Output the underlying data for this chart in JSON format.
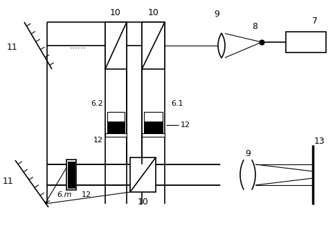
{
  "fig_width": 4.84,
  "fig_height": 3.46,
  "dpi": 100,
  "bg_color": "#ffffff",
  "lc": "#000000",
  "lw": 1.2,
  "tlw": 0.8
}
